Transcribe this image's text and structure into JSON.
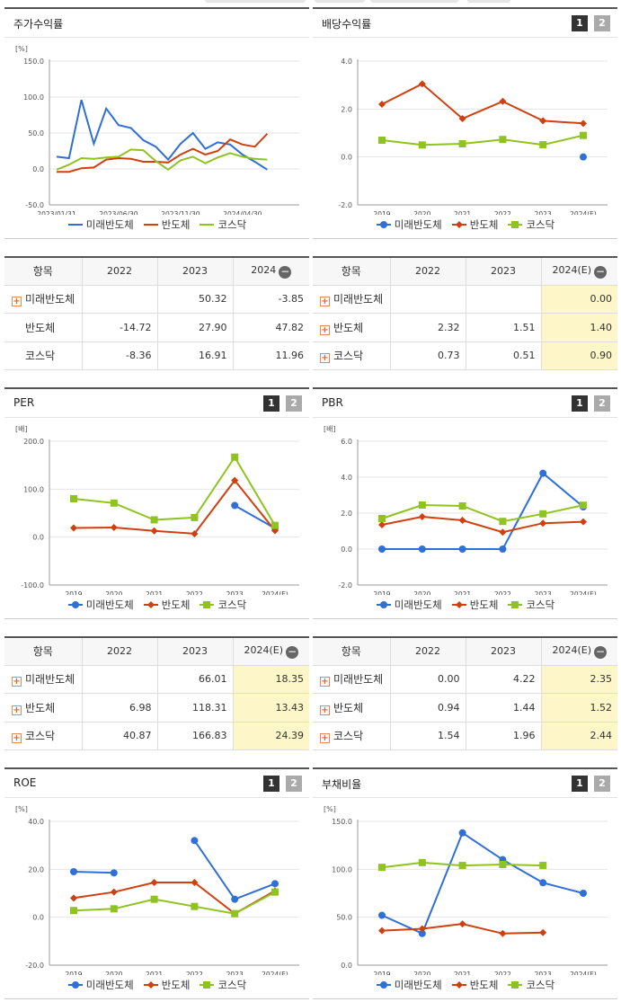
{
  "colors": {
    "mirae": "#2f6fd6",
    "semi": "#d0400f",
    "kosdaq": "#8fc31f",
    "grid": "#e2e2e2",
    "highlight": "#fdf6c8"
  },
  "legend": [
    "미래반도체",
    "반도체",
    "코스닥"
  ],
  "pager": [
    "1",
    "2"
  ],
  "panels": [
    {
      "id": "stock-return",
      "title": "주가수익률",
      "unit": "[%]",
      "chart_data": {
        "type": "line",
        "title": "주가수익률",
        "x_labels": [
          "2023/01/31",
          "2023/06/30",
          "2023/11/30",
          "2024/04/30"
        ],
        "label_idx": [
          0,
          5,
          10,
          15
        ],
        "n": 20,
        "ylim": [
          -50,
          150
        ],
        "yticks": [
          "150.0",
          "100.0",
          "50.0",
          "0.0",
          "-50.0"
        ],
        "ytick_vals": [
          150,
          100,
          50,
          0,
          -50
        ],
        "series": [
          {
            "name": "미래반도체",
            "values": [
              17,
              15,
              96,
              35,
              84,
              61,
              57,
              40,
              31,
              13,
              35,
              50,
              28,
              37,
              34,
              20,
              10,
              -1
            ]
          },
          {
            "name": "반도체",
            "values": [
              -4,
              -4,
              1,
              2,
              13,
              15,
              14,
              10,
              10,
              9,
              20,
              28,
              20,
              25,
              41,
              34,
              31,
              49
            ]
          },
          {
            "name": "코스닥",
            "values": [
              -1,
              6,
              15,
              14,
              16,
              17,
              27,
              26,
              11,
              -1,
              12,
              17,
              8,
              16,
              22,
              17,
              14,
              13
            ]
          }
        ],
        "markers": false
      }
    },
    {
      "id": "dividend-yield",
      "title": "배당수익률",
      "unit": "",
      "chart_data": {
        "type": "line",
        "title": "배당수익률",
        "categories": [
          "2019",
          "2020",
          "2021",
          "2022",
          "2023",
          "2024(E)"
        ],
        "ylim": [
          -2,
          4
        ],
        "yticks": [
          "4.0",
          "2.0",
          "0.0",
          "-2.0"
        ],
        "ytick_vals": [
          4,
          2,
          0,
          -2
        ],
        "series": [
          {
            "name": "미래반도체",
            "values": [
              null,
              null,
              null,
              null,
              null,
              0.0
            ]
          },
          {
            "name": "반도체",
            "values": [
              2.2,
              3.05,
              1.6,
              2.32,
              1.51,
              1.4
            ]
          },
          {
            "name": "코스닥",
            "values": [
              0.7,
              0.5,
              0.55,
              0.73,
              0.51,
              0.9
            ]
          }
        ],
        "markers": true
      }
    },
    {
      "id": "per",
      "title": "PER",
      "unit": "[배]",
      "chart_data": {
        "type": "line",
        "title": "PER",
        "categories": [
          "2019",
          "2020",
          "2021",
          "2022",
          "2023",
          "2024(E)"
        ],
        "ylim": [
          -100,
          200
        ],
        "yticks": [
          "200.0",
          "100.0",
          "0.0",
          "-100.0"
        ],
        "ytick_vals": [
          200,
          100,
          0,
          -100
        ],
        "series": [
          {
            "name": "미래반도체",
            "values": [
              null,
              null,
              null,
              null,
              66.01,
              18.35
            ]
          },
          {
            "name": "반도체",
            "values": [
              19,
              20,
              13,
              6.98,
              118.31,
              13.43
            ]
          },
          {
            "name": "코스닥",
            "values": [
              80,
              71,
              36,
              40.87,
              166.83,
              24.39
            ]
          }
        ],
        "markers": true
      }
    },
    {
      "id": "pbr",
      "title": "PBR",
      "unit": "[배]",
      "chart_data": {
        "type": "line",
        "title": "PBR",
        "categories": [
          "2019",
          "2020",
          "2021",
          "2022",
          "2023",
          "2024(E)"
        ],
        "ylim": [
          -2,
          6
        ],
        "yticks": [
          "6.0",
          "4.0",
          "2.0",
          "0.0",
          "-2.0"
        ],
        "ytick_vals": [
          6,
          4,
          2,
          0,
          -2
        ],
        "series": [
          {
            "name": "미래반도체",
            "values": [
              0,
              0,
              0,
              0.0,
              4.22,
              2.35
            ]
          },
          {
            "name": "반도체",
            "values": [
              1.35,
              1.8,
              1.6,
              0.94,
              1.44,
              1.52
            ]
          },
          {
            "name": "코스닥",
            "values": [
              1.7,
              2.45,
              2.4,
              1.54,
              1.96,
              2.44
            ]
          }
        ],
        "markers": true
      }
    },
    {
      "id": "roe",
      "title": "ROE",
      "unit": "[%]",
      "chart_data": {
        "type": "line",
        "title": "ROE",
        "categories": [
          "2019",
          "2020",
          "2021",
          "2022",
          "2023",
          "2024(E)"
        ],
        "ylim": [
          -20,
          40
        ],
        "yticks": [
          "40.0",
          "20.0",
          "0.0",
          "-20.0"
        ],
        "ytick_vals": [
          40,
          20,
          0,
          -20
        ],
        "series": [
          {
            "name": "미래반도체",
            "segments": [
              [
                [
                  0,
                  19
                ],
                [
                  1,
                  18.5
                ]
              ],
              [
                [
                  3,
                  32
                ],
                [
                  4,
                  7.5
                ],
                [
                  5,
                  14
                ]
              ]
            ]
          },
          {
            "name": "반도체",
            "values": [
              8,
              10.5,
              14.5,
              14.5,
              1.5,
              11
            ]
          },
          {
            "name": "코스닥",
            "values": [
              2.8,
              3.5,
              7.5,
              4.5,
              1.5,
              10.5
            ]
          }
        ],
        "markers": true
      }
    },
    {
      "id": "debt-ratio",
      "title": "부채비율",
      "unit": "[%]",
      "chart_data": {
        "type": "line",
        "title": "부채비율",
        "categories": [
          "2019",
          "2020",
          "2021",
          "2022",
          "2023",
          "2024(E)"
        ],
        "ylim": [
          0,
          150
        ],
        "yticks": [
          "150.0",
          "100.0",
          "50.0",
          "0.0"
        ],
        "ytick_vals": [
          150,
          100,
          50,
          0
        ],
        "series": [
          {
            "name": "미래반도체",
            "values": [
              52,
              33,
              138,
              110,
              86,
              75
            ]
          },
          {
            "name": "반도체",
            "values": [
              36,
              38,
              43,
              33,
              34,
              null
            ]
          },
          {
            "name": "코스닥",
            "values": [
              102,
              107,
              104,
              105,
              104,
              null
            ]
          }
        ],
        "markers": true
      }
    }
  ],
  "tables": [
    {
      "id": "stock-return-table",
      "header": [
        "항목",
        "2022",
        "2023",
        "2024"
      ],
      "header_icon": "−",
      "hl_last": false,
      "rows": [
        {
          "label": "미래반도체",
          "plus": true,
          "cells": [
            "",
            "50.32",
            "-3.85"
          ]
        },
        {
          "label": "반도체",
          "plus": false,
          "cells": [
            "-14.72",
            "27.90",
            "47.82"
          ]
        },
        {
          "label": "코스닥",
          "plus": false,
          "cells": [
            "-8.36",
            "16.91",
            "11.96"
          ]
        }
      ]
    },
    {
      "id": "dividend-table",
      "header": [
        "항목",
        "2022",
        "2023",
        "2024(E)"
      ],
      "header_icon": "−",
      "hl_last": true,
      "rows": [
        {
          "label": "미래반도체",
          "plus": true,
          "cells": [
            "",
            "",
            "0.00"
          ]
        },
        {
          "label": "반도체",
          "plus": true,
          "cells": [
            "2.32",
            "1.51",
            "1.40"
          ]
        },
        {
          "label": "코스닥",
          "plus": true,
          "cells": [
            "0.73",
            "0.51",
            "0.90"
          ]
        }
      ]
    },
    {
      "id": "per-table",
      "header": [
        "항목",
        "2022",
        "2023",
        "2024(E)"
      ],
      "header_icon": "−",
      "hl_last": true,
      "rows": [
        {
          "label": "미래반도체",
          "plus": true,
          "cells": [
            "",
            "66.01",
            "18.35"
          ]
        },
        {
          "label": "반도체",
          "plus": true,
          "cells": [
            "6.98",
            "118.31",
            "13.43"
          ]
        },
        {
          "label": "코스닥",
          "plus": true,
          "cells": [
            "40.87",
            "166.83",
            "24.39"
          ]
        }
      ]
    },
    {
      "id": "pbr-table",
      "header": [
        "항목",
        "2022",
        "2023",
        "2024(E)"
      ],
      "header_icon": "−",
      "hl_last": true,
      "rows": [
        {
          "label": "미래반도체",
          "plus": true,
          "cells": [
            "0.00",
            "4.22",
            "2.35"
          ]
        },
        {
          "label": "반도체",
          "plus": true,
          "cells": [
            "0.94",
            "1.44",
            "1.52"
          ]
        },
        {
          "label": "코스닥",
          "plus": true,
          "cells": [
            "1.54",
            "1.96",
            "2.44"
          ]
        }
      ]
    }
  ]
}
